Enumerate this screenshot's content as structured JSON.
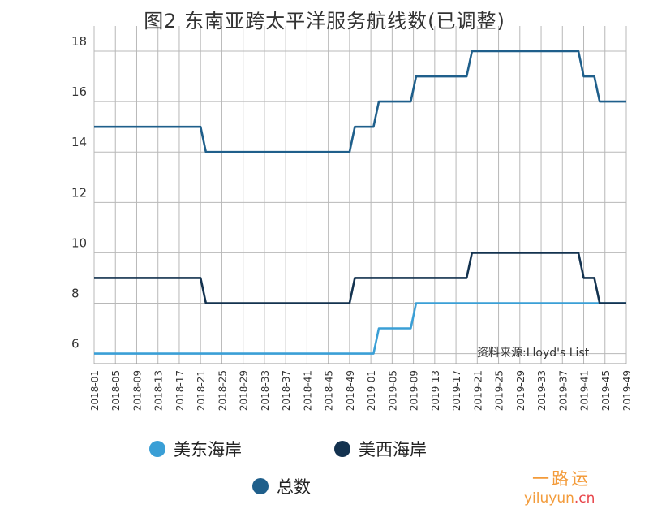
{
  "chart_data": {
    "type": "line",
    "title": "图2 东南亚跨太平洋服务航线数(已调整)",
    "source": "资料来源:Lloyd's List",
    "ylim": [
      5.6,
      19
    ],
    "y_ticks": [
      6,
      8,
      10,
      12,
      14,
      16,
      18
    ],
    "x_tick_labels": [
      "2018-01",
      "2018-05",
      "2018-09",
      "2018-13",
      "2018-17",
      "2018-21",
      "2018-25",
      "2018-29",
      "2018-33",
      "2018-37",
      "2018-41",
      "2018-45",
      "2018-49",
      "2019-01",
      "2019-05",
      "2019-09",
      "2019-13",
      "2019-17",
      "2019-21",
      "2019-25",
      "2019-29",
      "2019-33",
      "2019-37",
      "2019-41",
      "2019-45",
      "2019-49"
    ],
    "x_min_week": 0,
    "x_max_week": 100,
    "grid": true,
    "legend_position": "bottom",
    "series": [
      {
        "name": "美东海岸",
        "color": "#3a9fd6",
        "points": [
          [
            0,
            6
          ],
          [
            52.5,
            6
          ],
          [
            53.5,
            7
          ],
          [
            59.5,
            7
          ],
          [
            60.5,
            8
          ],
          [
            100,
            8
          ]
        ]
      },
      {
        "name": "美西海岸",
        "color": "#13324f",
        "points": [
          [
            0,
            9
          ],
          [
            20,
            9
          ],
          [
            21,
            8
          ],
          [
            48,
            8
          ],
          [
            49,
            9
          ],
          [
            70,
            9
          ],
          [
            71,
            10
          ],
          [
            91,
            10
          ],
          [
            92,
            9
          ],
          [
            94,
            9
          ],
          [
            95,
            8
          ],
          [
            100,
            8
          ]
        ]
      },
      {
        "name": "总数",
        "color": "#1f5f8b",
        "points": [
          [
            0,
            15
          ],
          [
            20,
            15
          ],
          [
            21,
            14
          ],
          [
            48,
            14
          ],
          [
            49,
            15
          ],
          [
            52.5,
            15
          ],
          [
            53.5,
            16
          ],
          [
            59.5,
            16
          ],
          [
            60.5,
            17
          ],
          [
            70,
            17
          ],
          [
            71,
            18
          ],
          [
            91,
            18
          ],
          [
            92,
            17
          ],
          [
            94,
            17
          ],
          [
            95,
            16
          ],
          [
            100,
            16
          ]
        ]
      }
    ]
  },
  "watermark": {
    "cn": "一路运",
    "en": "yiluyun",
    "en_suffix": ".cn"
  }
}
